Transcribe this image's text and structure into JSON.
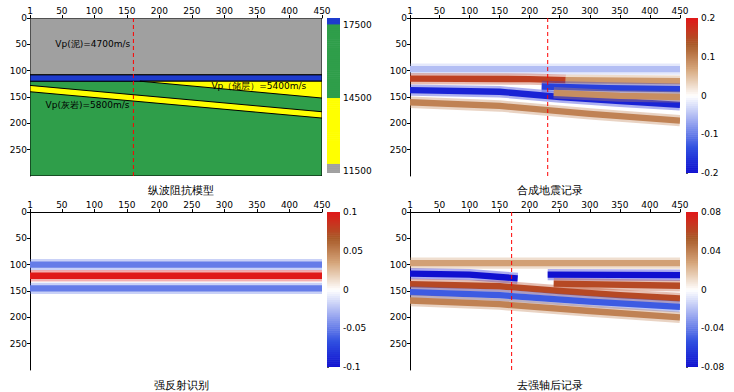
{
  "chart_data": [
    {
      "type": "layer_model",
      "title": "纵波阻抗模型",
      "xlim": [
        1,
        450
      ],
      "xticks": [
        1,
        50,
        100,
        150,
        200,
        250,
        300,
        350,
        400,
        450
      ],
      "ylim": [
        0,
        300
      ],
      "yticks": [
        0,
        50,
        100,
        150,
        200,
        250
      ],
      "layers": [
        {
          "impedance": 16000,
          "polygon": [
            [
              1,
              120
            ],
            [
              450,
              120
            ],
            [
              450,
              300
            ],
            [
              1,
              300
            ]
          ]
        },
        {
          "impedance": 11600,
          "polygon": [
            [
              1,
              0
            ],
            [
              450,
              0
            ],
            [
              450,
              108
            ],
            [
              1,
              108
            ]
          ]
        },
        {
          "impedance": 17700,
          "polygon": [
            [
              1,
              108
            ],
            [
              450,
              108
            ],
            [
              450,
              120
            ],
            [
              1,
              120
            ]
          ]
        },
        {
          "impedance": 13500,
          "polygon": [
            [
              170,
              120
            ],
            [
              450,
              120
            ],
            [
              450,
              152
            ]
          ]
        },
        {
          "impedance": 13500,
          "polygon": [
            [
              1,
              128
            ],
            [
              450,
              178
            ],
            [
              450,
              190
            ],
            [
              1,
              140
            ]
          ]
        }
      ],
      "colorbar": {
        "range": [
          11400,
          17800
        ],
        "ticks": [
          11500,
          14500,
          17500
        ],
        "pieces": [
          {
            "min": 11400,
            "max": 11800,
            "color": "#a0a0a0"
          },
          {
            "min": 11800,
            "max": 14500,
            "color": "#ffff00"
          },
          {
            "min": 14500,
            "max": 17600,
            "color": "#2f9e4a"
          },
          {
            "min": 17600,
            "max": 17800,
            "color": "#1e3ccd"
          }
        ]
      },
      "annotations": [
        {
          "text": "Vp(泥)=4700m/s",
          "x": 40,
          "y": 50
        },
        {
          "text": "Vp（储层）=5400m/s",
          "x": 280,
          "y": 130
        },
        {
          "text": "Vp(灰岩)=5800m/s",
          "x": 25,
          "y": 165
        }
      ],
      "vlines": [
        {
          "x": 160,
          "color": "#ff0000",
          "line_style": "dashed"
        }
      ]
    },
    {
      "type": "seismic_section",
      "title": "合成地震记录",
      "xlim": [
        1,
        450
      ],
      "xticks": [
        1,
        50,
        100,
        150,
        200,
        250,
        300,
        350,
        400,
        450
      ],
      "ylim": [
        0,
        300
      ],
      "yticks": [
        0,
        50,
        100,
        150,
        200,
        250
      ],
      "events": [
        {
          "amplitude": -0.05,
          "path": [
            [
              1,
              97
            ],
            [
              450,
              97
            ]
          ]
        },
        {
          "amplitude": 0.16,
          "path": [
            [
              1,
              115
            ],
            [
              200,
              116
            ],
            [
              260,
              118
            ]
          ]
        },
        {
          "amplitude": 0.08,
          "path": [
            [
              260,
              118
            ],
            [
              450,
              120
            ]
          ]
        },
        {
          "amplitude": -0.18,
          "path": [
            [
              1,
              137
            ],
            [
              150,
              140
            ],
            [
              250,
              150
            ],
            [
              350,
              158
            ],
            [
              450,
              165
            ]
          ]
        },
        {
          "amplitude": -0.15,
          "path": [
            [
              220,
              130
            ],
            [
              330,
              133
            ],
            [
              450,
              135
            ]
          ]
        },
        {
          "amplitude": 0.09,
          "path": [
            [
              240,
              142
            ],
            [
              350,
              148
            ],
            [
              450,
              150
            ]
          ]
        },
        {
          "amplitude": 0.1,
          "path": [
            [
              1,
              160
            ],
            [
              150,
              167
            ],
            [
              300,
              182
            ],
            [
              450,
              195
            ]
          ]
        }
      ],
      "colorbar": {
        "range": [
          -0.2,
          0.2
        ],
        "ticks": [
          -0.2,
          -0.1,
          0,
          0.1,
          0.2
        ]
      },
      "vlines": [
        {
          "x": 230,
          "color": "#ff0000",
          "line_style": "dashed"
        }
      ]
    },
    {
      "type": "seismic_section",
      "title": "强反射识别",
      "xlim": [
        1,
        450
      ],
      "xticks": [
        1,
        50,
        100,
        150,
        200,
        250,
        300,
        350,
        400,
        450
      ],
      "ylim": [
        0,
        300
      ],
      "yticks": [
        0,
        50,
        100,
        150,
        200,
        250
      ],
      "events": [
        {
          "amplitude": -0.05,
          "path": [
            [
              1,
              100
            ],
            [
              450,
              100
            ]
          ]
        },
        {
          "amplitude": 0.1,
          "path": [
            [
              1,
              121
            ],
            [
              450,
              121
            ]
          ]
        },
        {
          "amplitude": -0.05,
          "path": [
            [
              1,
              145
            ],
            [
              450,
              145
            ]
          ]
        }
      ],
      "colorbar": {
        "range": [
          -0.1,
          0.1
        ],
        "ticks": [
          -0.1,
          -0.05,
          0,
          0.05,
          0.1
        ]
      }
    },
    {
      "type": "seismic_section",
      "title": "去强轴后记录",
      "xlim": [
        1,
        450
      ],
      "xticks": [
        1,
        50,
        100,
        150,
        200,
        250,
        300,
        350,
        400,
        450
      ],
      "ylim": [
        0,
        300
      ],
      "yticks": [
        0,
        50,
        100,
        150,
        200,
        250
      ],
      "events": [
        {
          "amplitude": 0.03,
          "path": [
            [
              1,
              97
            ],
            [
              450,
              97
            ]
          ]
        },
        {
          "amplitude": -0.08,
          "path": [
            [
              1,
              117
            ],
            [
              100,
              119
            ],
            [
              180,
              126
            ]
          ]
        },
        {
          "amplitude": -0.08,
          "path": [
            [
              230,
              119
            ],
            [
              450,
              120
            ]
          ]
        },
        {
          "amplitude": 0.06,
          "path": [
            [
              1,
              137
            ],
            [
              150,
              141
            ],
            [
              250,
              150
            ],
            [
              350,
              158
            ],
            [
              450,
              164
            ]
          ]
        },
        {
          "amplitude": 0.06,
          "path": [
            [
              240,
              136
            ],
            [
              450,
              140
            ]
          ]
        },
        {
          "amplitude": -0.05,
          "path": [
            [
              1,
              152
            ],
            [
              150,
              158
            ],
            [
              300,
              170
            ],
            [
              450,
              180
            ]
          ]
        },
        {
          "amplitude": 0.04,
          "path": [
            [
              1,
              168
            ],
            [
              150,
              175
            ],
            [
              300,
              188
            ],
            [
              450,
              200
            ]
          ]
        }
      ],
      "colorbar": {
        "range": [
          -0.08,
          0.08
        ],
        "ticks": [
          -0.08,
          -0.04,
          0,
          0.04,
          0.08
        ]
      },
      "vlines": [
        {
          "x": 170,
          "color": "#ff0000",
          "line_style": "dashed"
        }
      ]
    }
  ]
}
